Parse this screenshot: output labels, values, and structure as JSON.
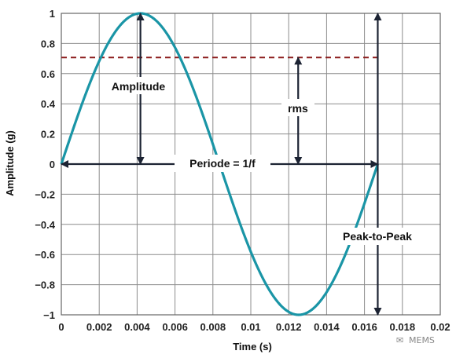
{
  "chart_data": {
    "type": "line",
    "title": "",
    "xlabel": "Time (s)",
    "ylabel": "Amplitude (g)",
    "xlim": [
      0,
      0.02
    ],
    "ylim": [
      -1,
      1
    ],
    "grid": true,
    "x_ticks": [
      "0",
      "0.002",
      "0.004",
      "0.006",
      "0.008",
      "0.01",
      "0.012",
      "0.014",
      "0.016",
      "0.018",
      "0.02"
    ],
    "y_ticks": [
      "1",
      "0.8",
      "0.6",
      "0.4",
      "0.2",
      "0",
      "−0.2",
      "−0.4",
      "−0.6",
      "−0.8",
      "−1"
    ],
    "series": [
      {
        "amplitude": 1,
        "period": 0.0167,
        "color": "#1a95a6",
        "x": [
          0,
          0.001,
          0.002,
          0.003,
          0.004,
          0.00418,
          0.005,
          0.006,
          0.007,
          0.008,
          0.00835,
          0.009,
          0.01,
          0.011,
          0.012,
          0.01253,
          0.013,
          0.014,
          0.015,
          0.016,
          0.0167
        ],
        "y": [
          0,
          0.36,
          0.67,
          0.91,
          1.0,
          1.0,
          0.95,
          0.73,
          0.44,
          0.13,
          0,
          -0.24,
          -0.57,
          -0.83,
          -0.98,
          -1.0,
          -0.97,
          -0.87,
          -0.64,
          -0.26,
          0
        ]
      }
    ],
    "rms_line": {
      "y": 0.707,
      "color": "#8b1a1a"
    },
    "annotations": {
      "amplitude": "Amplitude",
      "rms": "rms",
      "period": "Periode = 1/f",
      "peak_to_peak": "Peak-to-Peak"
    },
    "arrow_color": "#1c2333"
  },
  "watermark": "MEMS"
}
